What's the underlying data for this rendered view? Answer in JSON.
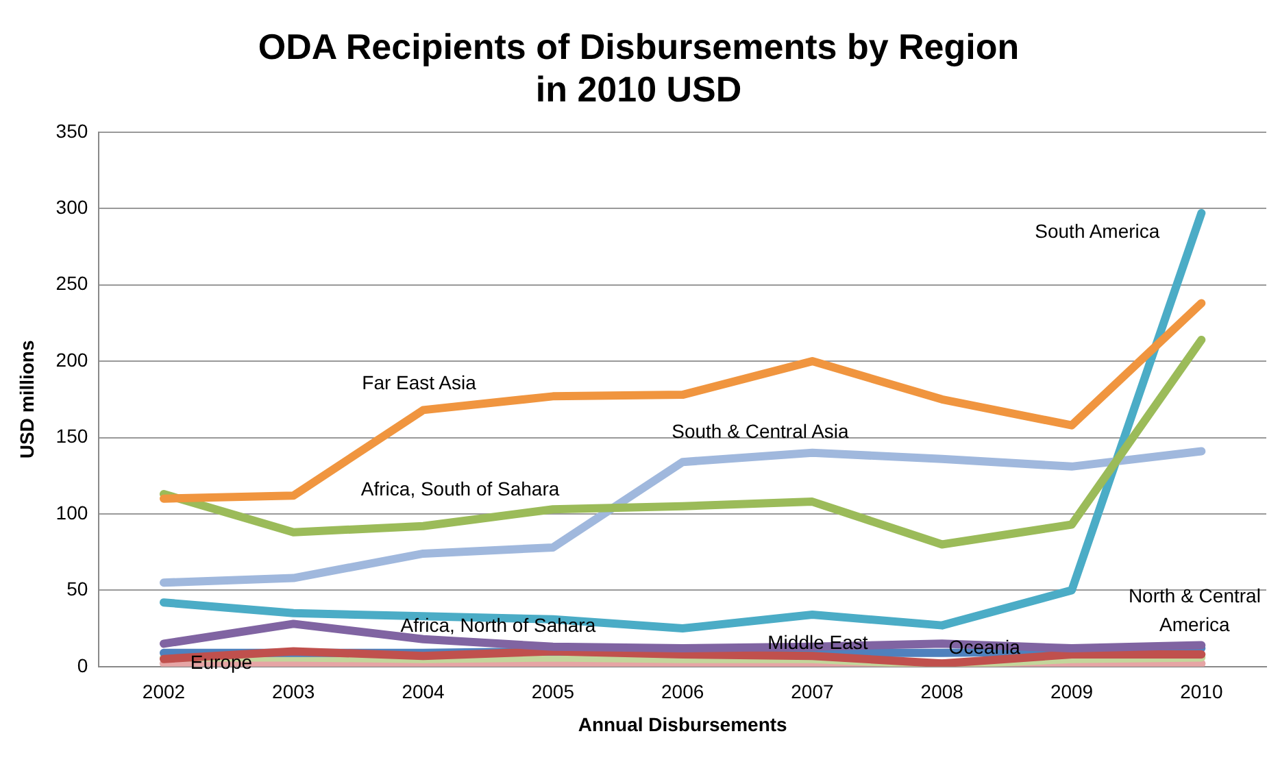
{
  "chart_data": {
    "type": "line",
    "title": "ODA Recipients of Disbursements by Region\nin 2010 USD",
    "xlabel": "Annual Disbursements",
    "ylabel": "USD millions",
    "categories": [
      "2002",
      "2003",
      "2004",
      "2005",
      "2006",
      "2007",
      "2008",
      "2009",
      "2010"
    ],
    "ylim": [
      0,
      350
    ],
    "yticks": [
      0,
      50,
      100,
      150,
      200,
      250,
      300,
      350
    ],
    "grid": "y",
    "legend": false,
    "marker": "none",
    "line_style": "solid",
    "series": [
      {
        "name": "Far East Asia",
        "color": "#f0953f",
        "values": [
          110,
          112,
          168,
          177,
          178,
          200,
          175,
          158,
          238
        ]
      },
      {
        "name": "Africa, South of Sahara",
        "color": "#9bbb59",
        "values": [
          113,
          88,
          92,
          103,
          105,
          108,
          80,
          93,
          214
        ]
      },
      {
        "name": "South & Central Asia",
        "color": "#a0b8dd",
        "values": [
          55,
          58,
          74,
          78,
          134,
          140,
          136,
          131,
          141
        ]
      },
      {
        "name": "South America",
        "color": "#4bacc6",
        "values": [
          42,
          35,
          33,
          31,
          25,
          34,
          27,
          50,
          297
        ]
      },
      {
        "name": "Africa, North of Sahara",
        "color": "#8064a2",
        "values": [
          15,
          28,
          18,
          13,
          12,
          13,
          15,
          12,
          14
        ]
      },
      {
        "name": "Middle East",
        "color": "#c0504d",
        "values": [
          5,
          10,
          7,
          10,
          8,
          7,
          2,
          8,
          8
        ]
      },
      {
        "name": "North & Central America",
        "color": "#4f81bd",
        "values": [
          9,
          9,
          9,
          10,
          9,
          9,
          9,
          10,
          12
        ]
      },
      {
        "name": "Oceania",
        "color": "#c3d69b",
        "values": [
          6,
          6,
          5,
          6,
          5,
          5,
          1,
          5,
          6
        ]
      },
      {
        "name": "Europe",
        "color": "#e6a5a5",
        "values": [
          2,
          2,
          2,
          2,
          2,
          2,
          2,
          2,
          2
        ]
      }
    ]
  }
}
